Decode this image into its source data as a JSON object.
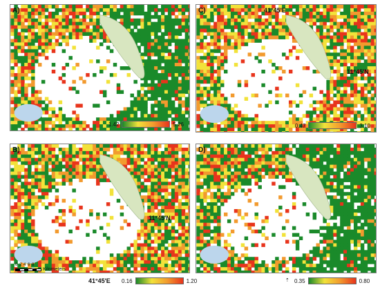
{
  "panels": [
    {
      "id": "A",
      "label": "A)",
      "legend_min": "1.42",
      "legend_max": "5.26",
      "green_bias": 0.55
    },
    {
      "id": "B",
      "label": "B)",
      "legend_min": "0.16",
      "legend_max": "1.20",
      "green_bias": 0.35,
      "lon_label": "41°45'E",
      "lat_label": "11°45'N"
    },
    {
      "id": "C",
      "label": "C)",
      "legend_min": "0.47",
      "legend_max": "3.10",
      "green_bias": 0.3,
      "lon_label": "41°45'E",
      "lat_label": "11°45'N"
    },
    {
      "id": "D",
      "label": "D)",
      "legend_min": "0.35",
      "legend_max": "0.80",
      "green_bias": 0.6
    }
  ],
  "scale_bar": {
    "ticks": "0 2 4 6 8",
    "unit": "Kilometers"
  },
  "colors": {
    "green": "#1a8a2a",
    "yellow": "#f2e23a",
    "orange": "#f29a2e",
    "red": "#e8341c",
    "lake": "#d8e6c0",
    "water": "#bcd6ec"
  }
}
